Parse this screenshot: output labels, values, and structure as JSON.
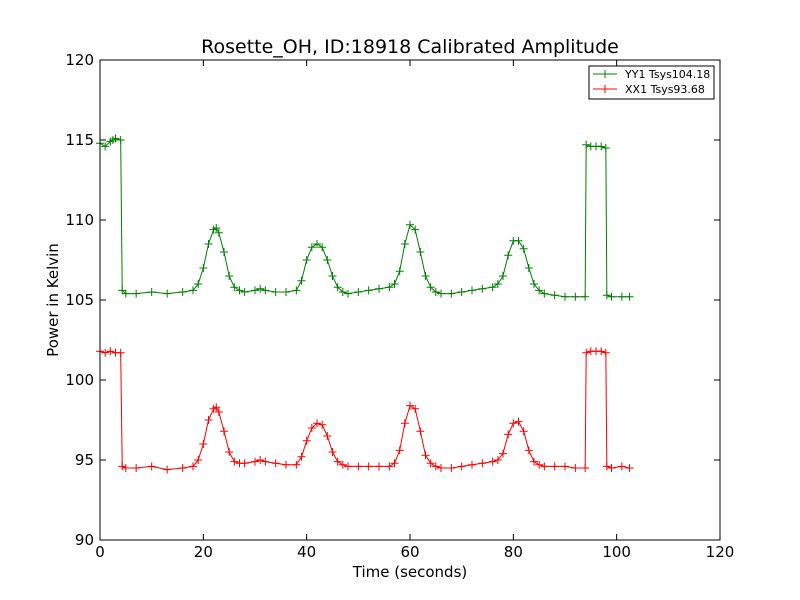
{
  "chart_data": {
    "type": "line",
    "title": "Rosette_OH, ID:18918 Calibrated Amplitude",
    "xlabel": "Time (seconds)",
    "ylabel": "Power in Kelvin",
    "xlim": [
      0,
      120
    ],
    "ylim": [
      90,
      120
    ],
    "xticks": [
      "0",
      "20",
      "40",
      "60",
      "80",
      "100",
      "120"
    ],
    "yticks": [
      "90",
      "95",
      "100",
      "105",
      "110",
      "115",
      "120"
    ],
    "grid": false,
    "legend_position": "top-right",
    "marker": "+",
    "series": [
      {
        "name": "YY1 Tsys104.18",
        "color": "#008000",
        "x": [
          0,
          1,
          2,
          2.5,
          3,
          4,
          4.3,
          5,
          7,
          10,
          13,
          16,
          18,
          19,
          20,
          21,
          22,
          22.5,
          23,
          24,
          25,
          26,
          27,
          28,
          30,
          31,
          32,
          34,
          36,
          38,
          39,
          40,
          41,
          42,
          43,
          44,
          45,
          46,
          47,
          48,
          50,
          52,
          54,
          56,
          57,
          58,
          59,
          60,
          61,
          62,
          63,
          64,
          65,
          66,
          68,
          70,
          72,
          74,
          76,
          77,
          78,
          79,
          80,
          81,
          82,
          83,
          84,
          85,
          86,
          88,
          90,
          92,
          93.9,
          94.1,
          95,
          96,
          97,
          97.9,
          98.1,
          99,
          101,
          102.5
        ],
        "values": [
          114.8,
          114.6,
          114.9,
          115.0,
          115.1,
          115.0,
          105.6,
          105.4,
          105.4,
          105.5,
          105.4,
          105.5,
          105.6,
          106.0,
          107.0,
          108.5,
          109.4,
          109.5,
          109.2,
          108.0,
          106.5,
          105.8,
          105.6,
          105.5,
          105.6,
          105.7,
          105.6,
          105.5,
          105.5,
          105.6,
          106.2,
          107.5,
          108.3,
          108.5,
          108.3,
          107.5,
          106.5,
          105.8,
          105.5,
          105.4,
          105.5,
          105.6,
          105.7,
          105.8,
          106.0,
          106.8,
          108.5,
          109.7,
          109.4,
          108.0,
          106.5,
          105.8,
          105.5,
          105.4,
          105.4,
          105.5,
          105.6,
          105.7,
          105.8,
          106.0,
          106.5,
          107.8,
          108.7,
          108.7,
          108.2,
          107.0,
          106.0,
          105.6,
          105.4,
          105.3,
          105.2,
          105.2,
          105.2,
          114.7,
          114.6,
          114.6,
          114.6,
          114.5,
          105.3,
          105.2,
          105.2,
          105.2
        ]
      },
      {
        "name": "XX1 Tsys93.68",
        "color": "#ff0000",
        "x": [
          0,
          1,
          2,
          3,
          4,
          4.3,
          5,
          7,
          10,
          13,
          16,
          18,
          19,
          20,
          21,
          22,
          22.5,
          23,
          24,
          25,
          26,
          27,
          28,
          30,
          31,
          32,
          34,
          36,
          38,
          39,
          40,
          41,
          42,
          43,
          44,
          45,
          46,
          47,
          48,
          50,
          52,
          54,
          56,
          57,
          58,
          59,
          60,
          61,
          62,
          63,
          64,
          65,
          66,
          68,
          70,
          72,
          74,
          76,
          77,
          78,
          79,
          80,
          81,
          82,
          83,
          84,
          85,
          86,
          88,
          90,
          92,
          93.9,
          94.1,
          95,
          96,
          97,
          97.9,
          98.1,
          99,
          101,
          102.5
        ],
        "values": [
          101.8,
          101.7,
          101.8,
          101.7,
          101.7,
          94.6,
          94.5,
          94.5,
          94.6,
          94.4,
          94.5,
          94.6,
          95.0,
          96.0,
          97.5,
          98.2,
          98.3,
          98.0,
          96.8,
          95.5,
          94.9,
          94.8,
          94.8,
          94.9,
          95.0,
          94.9,
          94.8,
          94.7,
          94.7,
          95.2,
          96.2,
          97.0,
          97.3,
          97.2,
          96.5,
          95.5,
          94.9,
          94.7,
          94.6,
          94.6,
          94.6,
          94.6,
          94.6,
          94.8,
          95.6,
          97.3,
          98.4,
          98.2,
          96.8,
          95.3,
          94.8,
          94.6,
          94.5,
          94.5,
          94.6,
          94.7,
          94.8,
          94.9,
          95.0,
          95.4,
          96.6,
          97.3,
          97.4,
          96.8,
          95.6,
          94.9,
          94.7,
          94.6,
          94.6,
          94.6,
          94.5,
          94.5,
          101.7,
          101.8,
          101.8,
          101.8,
          101.7,
          94.6,
          94.5,
          94.6,
          94.5
        ]
      }
    ]
  }
}
